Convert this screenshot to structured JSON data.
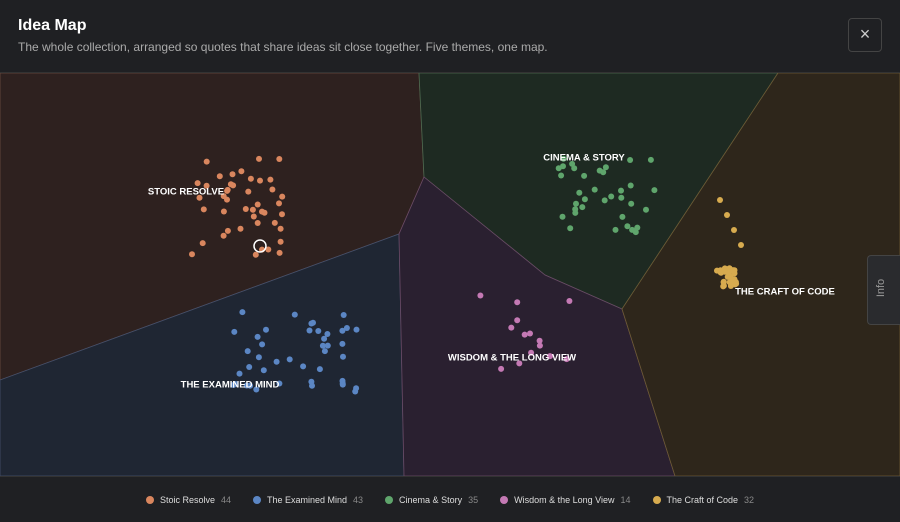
{
  "header": {
    "title": "Idea Map",
    "subtitle": "The whole collection, arranged so quotes that share ideas sit close together. Five themes, one map.",
    "close": "×"
  },
  "info_tab": "Info",
  "themes": [
    {
      "label": "STOIC RESOLVE",
      "legend": "Stoic Resolve",
      "count": 44,
      "color": "#d9865e"
    },
    {
      "label": "THE EXAMINED MIND",
      "legend": "The Examined Mind",
      "count": 43,
      "color": "#5b86c4"
    },
    {
      "label": "CINEMA & STORY",
      "legend": "Cinema & Story",
      "count": 35,
      "color": "#5fa56c"
    },
    {
      "label": "WISDOM & THE LONG VIEW",
      "legend": "Wisdom & the Long View",
      "count": 14,
      "color": "#c479b4"
    },
    {
      "label": "THE CRAFT OF CODE",
      "legend": "The Craft of Code",
      "count": 32,
      "color": "#d7ab4f"
    }
  ]
}
